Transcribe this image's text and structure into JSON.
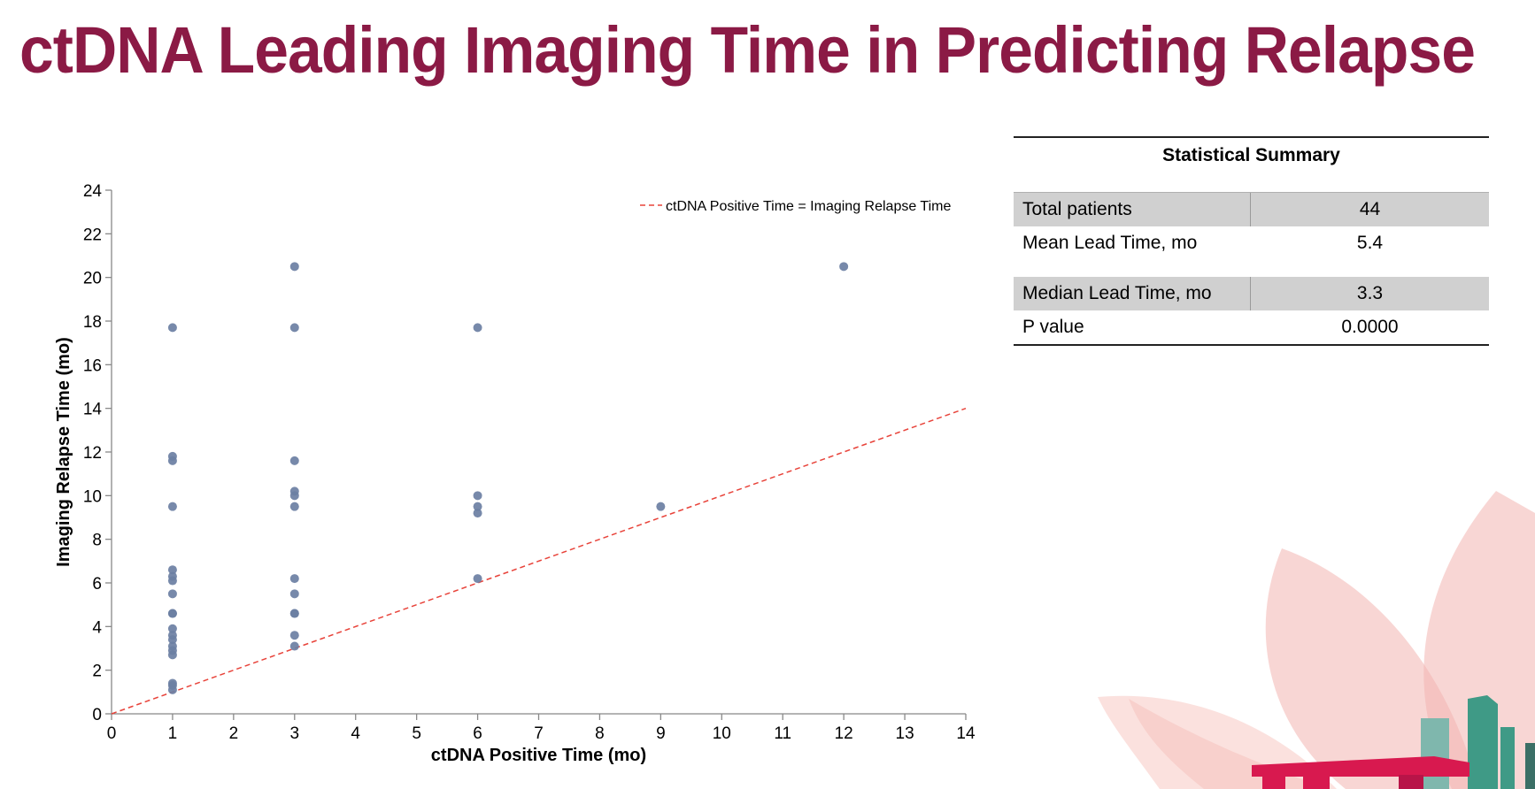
{
  "slide": {
    "title": "ctDNA Leading Imaging Time in Predicting Relapse"
  },
  "summary": {
    "heading": "Statistical Summary",
    "rows": [
      {
        "label": "Total patients",
        "value": "44"
      },
      {
        "label": "Mean Lead Time, mo",
        "value": "5.4"
      },
      {
        "label": "Median Lead Time, mo",
        "value": "3.3"
      },
      {
        "label": "P value",
        "value": "0.0000"
      }
    ]
  },
  "colors": {
    "title": "#8b1a45",
    "points": "#6b7fa3",
    "reference_line": "#e8433a"
  },
  "chart_data": {
    "type": "scatter",
    "title": "",
    "xlabel": "ctDNA Positive Time (mo)",
    "ylabel": "Imaging Relapse Time (mo)",
    "xlim": [
      0,
      14
    ],
    "ylim": [
      0,
      24
    ],
    "xticks": [
      0,
      1,
      2,
      3,
      4,
      5,
      6,
      7,
      8,
      9,
      10,
      11,
      12,
      13,
      14
    ],
    "yticks": [
      0,
      2,
      4,
      6,
      8,
      10,
      12,
      14,
      16,
      18,
      20,
      22,
      24
    ],
    "grid": false,
    "legend_position": "top-right",
    "series": [
      {
        "name": "",
        "points": [
          [
            1,
            17.7
          ],
          [
            1,
            11.8
          ],
          [
            1,
            11.6
          ],
          [
            1,
            9.5
          ],
          [
            1,
            6.6
          ],
          [
            1,
            6.3
          ],
          [
            1,
            6.1
          ],
          [
            1,
            5.5
          ],
          [
            1,
            4.6
          ],
          [
            1,
            4.6
          ],
          [
            1,
            3.9
          ],
          [
            1,
            3.6
          ],
          [
            1,
            3.4
          ],
          [
            1,
            3.1
          ],
          [
            1,
            2.9
          ],
          [
            1,
            2.7
          ],
          [
            1,
            1.4
          ],
          [
            1,
            1.3
          ],
          [
            1,
            1.1
          ],
          [
            3,
            20.5
          ],
          [
            3,
            17.7
          ],
          [
            3,
            11.6
          ],
          [
            3,
            10.2
          ],
          [
            3,
            10.0
          ],
          [
            3,
            9.5
          ],
          [
            3,
            6.2
          ],
          [
            3,
            5.5
          ],
          [
            3,
            4.6
          ],
          [
            3,
            4.6
          ],
          [
            3,
            3.6
          ],
          [
            3,
            3.1
          ],
          [
            6,
            17.7
          ],
          [
            6,
            10.0
          ],
          [
            6,
            9.5
          ],
          [
            6,
            9.2
          ],
          [
            6,
            6.2
          ],
          [
            9,
            9.5
          ],
          [
            12,
            20.5
          ]
        ]
      },
      {
        "name": "ctDNA Positive Time = Imaging Relapse Time",
        "style": "dashed-line",
        "points": [
          [
            0,
            0
          ],
          [
            14,
            14
          ]
        ]
      }
    ]
  }
}
